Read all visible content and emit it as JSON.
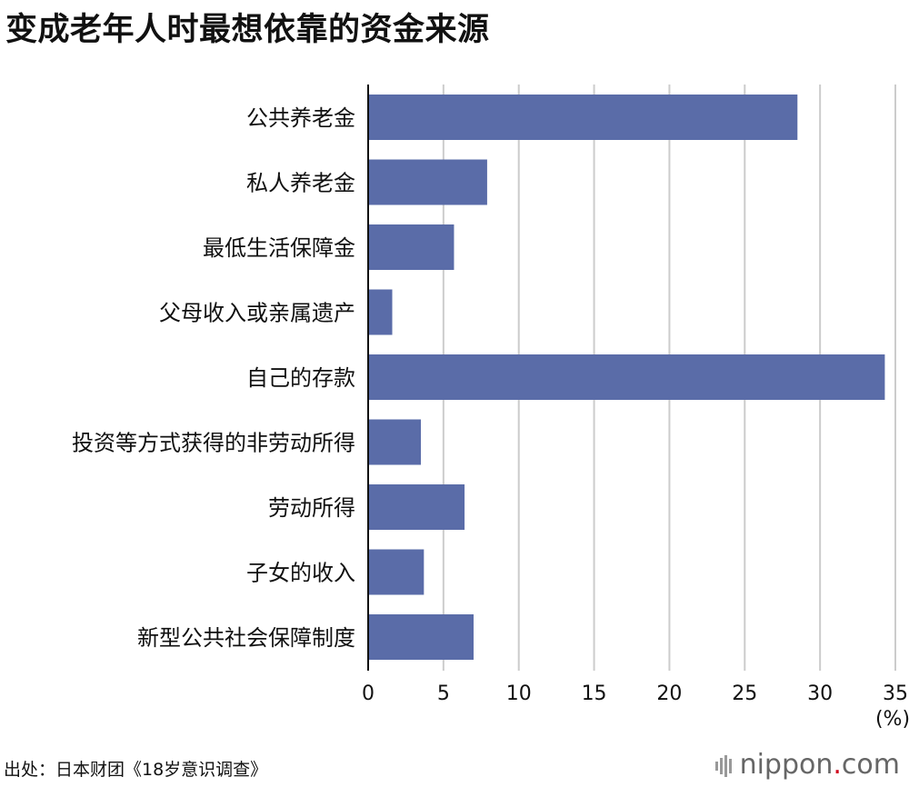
{
  "title": "变成老年人时最想依靠的资金来源",
  "source": "出处：日本财团《18岁意识调查》",
  "brand": {
    "name_prefix": "nippon",
    "dot": ".",
    "name_suffix": "com"
  },
  "chart_data": {
    "type": "bar",
    "orientation": "horizontal",
    "categories": [
      "公共养老金",
      "私人养老金",
      "最低生活保障金",
      "父母收入或亲属遗产",
      "自己的存款",
      "投资等方式获得的非劳动所得",
      "劳动所得",
      "子女的收入",
      "新型公共社会保障制度"
    ],
    "values": [
      28.5,
      7.9,
      5.7,
      1.6,
      34.3,
      3.5,
      6.4,
      3.7,
      7.0
    ],
    "xticks": [
      0,
      5,
      10,
      15,
      20,
      25,
      30,
      35
    ],
    "xlim": [
      0,
      35
    ],
    "unit": "(%)",
    "bar_color": "#5a6ca8",
    "grid": true
  }
}
